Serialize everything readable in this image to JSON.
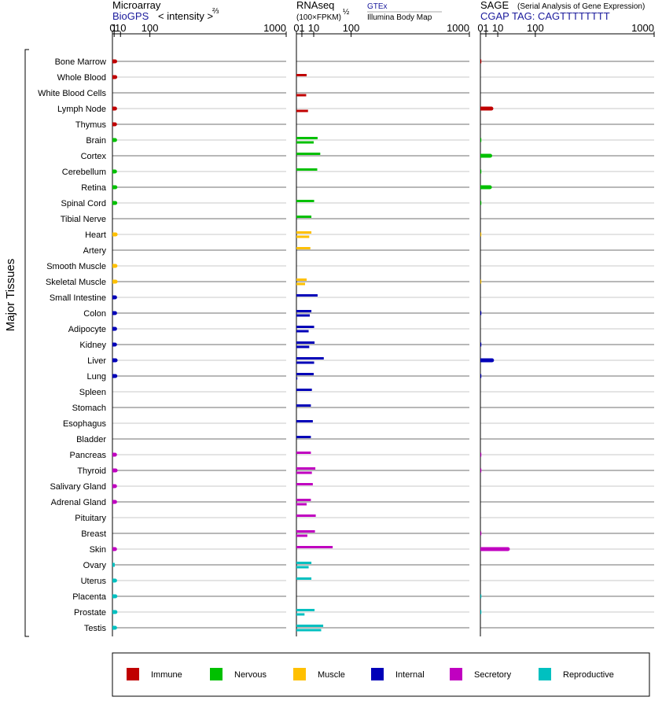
{
  "colors": {
    "Immune": "#c00000",
    "Nervous": "#00c000",
    "Muscle": "#ffc000",
    "Internal": "#0000b8",
    "Secretory": "#c000c0",
    "Reproductive": "#00c0c0"
  },
  "headers": {
    "microarray": "Microarray",
    "biogps": "BioGPS",
    "intensity": "< intensity >",
    "intensity_exp": "⅔",
    "rnaseq": "RNAseq",
    "fpkm": "(100×FPKM)",
    "fpkm_exp": "½",
    "gtex": "GTEx",
    "illumina": "Illumina Body Map",
    "sage": "SAGE",
    "sage_full": "(Serial Analysis of Gene Expression)",
    "cgap": "CGAP TAG: CAGTTTTTTTT"
  },
  "y_group_label": "Major Tissues",
  "legend_items": [
    "Immune",
    "Nervous",
    "Muscle",
    "Internal",
    "Secretory",
    "Reproductive"
  ],
  "chart_data": [
    {
      "type": "bar",
      "panel": "Microarray",
      "scale": "power 2/3",
      "ticks": [
        0,
        1,
        10,
        100,
        1000
      ],
      "xlim": [
        0,
        1000
      ],
      "categories": [
        "Bone Marrow",
        "Whole Blood",
        "White Blood Cells",
        "Lymph Node",
        "Thymus",
        "Brain",
        "Cortex",
        "Cerebellum",
        "Retina",
        "Spinal Cord",
        "Tibial Nerve",
        "Heart",
        "Artery",
        "Smooth Muscle",
        "Skeletal Muscle",
        "Small Intestine",
        "Colon",
        "Adipocyte",
        "Kidney",
        "Liver",
        "Lung",
        "Spleen",
        "Stomach",
        "Esophagus",
        "Bladder",
        "Pancreas",
        "Thyroid",
        "Salivary Gland",
        "Adrenal Gland",
        "Pituitary",
        "Breast",
        "Skin",
        "Ovary",
        "Uterus",
        "Placenta",
        "Prostate",
        "Testis"
      ],
      "groups": [
        "Immune",
        "Immune",
        "Immune",
        "Immune",
        "Immune",
        "Nervous",
        "Nervous",
        "Nervous",
        "Nervous",
        "Nervous",
        "Nervous",
        "Muscle",
        "Muscle",
        "Muscle",
        "Muscle",
        "Internal",
        "Internal",
        "Internal",
        "Internal",
        "Internal",
        "Internal",
        "Internal",
        "Internal",
        "Internal",
        "Internal",
        "Secretory",
        "Secretory",
        "Secretory",
        "Secretory",
        "Secretory",
        "Secretory",
        "Secretory",
        "Reproductive",
        "Reproductive",
        "Reproductive",
        "Reproductive",
        "Reproductive"
      ],
      "series": [
        {
          "values": [
            2.0,
            2.1,
            null,
            1.9,
            1.8,
            1.9,
            null,
            1.8,
            2.2,
            2.1,
            null,
            2.5,
            null,
            2.3,
            2.5,
            1.9,
            1.9,
            1.9,
            1.8,
            2.5,
            2.2,
            null,
            null,
            null,
            null,
            1.8,
            2.5,
            1.8,
            1.9,
            null,
            null,
            1.8,
            1.5,
            1.9,
            2.2,
            2.3,
            1.9
          ]
        }
      ]
    },
    {
      "type": "bar",
      "panel": "RNAseq",
      "scale": "power 1/2",
      "ticks": [
        0,
        1,
        10,
        100,
        1000
      ],
      "xlim": [
        0,
        1000
      ],
      "categories": [
        "Bone Marrow",
        "Whole Blood",
        "White Blood Cells",
        "Lymph Node",
        "Thymus",
        "Brain",
        "Cortex",
        "Cerebellum",
        "Retina",
        "Spinal Cord",
        "Tibial Nerve",
        "Heart",
        "Artery",
        "Smooth Muscle",
        "Skeletal Muscle",
        "Small Intestine",
        "Colon",
        "Adipocyte",
        "Kidney",
        "Liver",
        "Lung",
        "Spleen",
        "Stomach",
        "Esophagus",
        "Bladder",
        "Pancreas",
        "Thyroid",
        "Salivary Gland",
        "Adrenal Gland",
        "Pituitary",
        "Breast",
        "Skin",
        "Ovary",
        "Uterus",
        "Placenta",
        "Prostate",
        "Testis"
      ],
      "series": [
        {
          "name": "GTEx",
          "values": [
            null,
            3.5,
            null,
            null,
            null,
            15,
            19,
            14.5,
            null,
            10.5,
            7.5,
            7.5,
            6.5,
            null,
            3.5,
            15,
            7.5,
            10.5,
            11,
            25,
            10,
            8,
            7,
            9,
            7,
            7,
            12,
            9,
            7,
            12.5,
            11.5,
            44,
            7.5,
            7.5,
            null,
            11,
            24
          ]
        },
        {
          "name": "Illumina Body Map",
          "values": [
            null,
            null,
            3.2,
            4.5,
            null,
            10,
            null,
            null,
            null,
            null,
            null,
            5.5,
            null,
            null,
            2.5,
            null,
            6,
            5,
            5.5,
            10.5,
            0.02,
            null,
            null,
            null,
            null,
            null,
            8,
            null,
            3.5,
            null,
            4,
            null,
            5,
            null,
            null,
            2.2,
            20.5
          ]
        }
      ]
    },
    {
      "type": "bar",
      "panel": "SAGE",
      "scale": "power 1/2",
      "ticks": [
        0,
        1,
        10,
        100,
        1000
      ],
      "xlim": [
        0,
        1000
      ],
      "categories": [
        "Bone Marrow",
        "Whole Blood",
        "White Blood Cells",
        "Lymph Node",
        "Thymus",
        "Brain",
        "Cortex",
        "Cerebellum",
        "Retina",
        "Spinal Cord",
        "Tibial Nerve",
        "Heart",
        "Artery",
        "Smooth Muscle",
        "Skeletal Muscle",
        "Small Intestine",
        "Colon",
        "Adipocyte",
        "Kidney",
        "Liver",
        "Lung",
        "Spleen",
        "Stomach",
        "Esophagus",
        "Bladder",
        "Pancreas",
        "Thyroid",
        "Salivary Gland",
        "Adrenal Gland",
        "Pituitary",
        "Breast",
        "Skin",
        "Ovary",
        "Uterus",
        "Placenta",
        "Prostate",
        "Testis"
      ],
      "series": [
        {
          "values": [
            0.01,
            null,
            null,
            4,
            null,
            0.01,
            3.2,
            0.01,
            3,
            0.01,
            null,
            0.01,
            null,
            null,
            0.01,
            null,
            0.01,
            null,
            0.01,
            4.5,
            0.01,
            null,
            null,
            null,
            null,
            0.01,
            0.01,
            null,
            null,
            null,
            0.01,
            25,
            null,
            null,
            0.01,
            0.01,
            null
          ]
        }
      ]
    }
  ]
}
